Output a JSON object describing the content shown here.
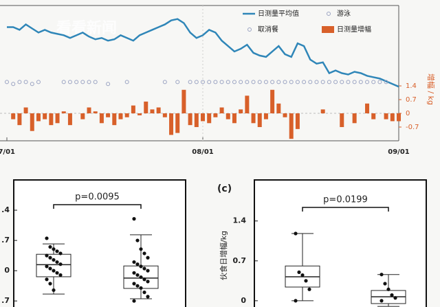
{
  "chart_data": [
    {
      "type": "combo",
      "watermark": "看看新闻",
      "y2label": "增幅 / kg",
      "xlim": [
        0,
        62
      ],
      "xticks": [
        {
          "value": 0,
          "label": "7/01"
        },
        {
          "value": 31,
          "label": "08/01"
        },
        {
          "value": 62,
          "label": "09/01"
        }
      ],
      "ylim": [
        0,
        100
      ],
      "y2lim": [
        -1.4,
        5.5
      ],
      "y2ticks": [
        1.4,
        0.7,
        0,
        -0.7
      ],
      "series": [
        {
          "name": "日测量平均值",
          "type": "line",
          "color": "#2f86b8",
          "x": [
            0,
            1,
            2,
            3,
            4,
            5,
            6,
            7,
            8,
            9,
            10,
            11,
            12,
            13,
            14,
            15,
            16,
            17,
            18,
            19,
            20,
            21,
            22,
            23,
            24,
            25,
            26,
            27,
            28,
            29,
            30,
            31,
            32,
            33,
            34,
            35,
            36,
            37,
            38,
            39,
            40,
            41,
            42,
            43,
            44,
            45,
            46,
            47,
            48,
            49,
            50,
            51,
            52,
            53,
            54,
            55,
            56,
            57,
            58,
            59,
            60,
            61,
            62
          ],
          "values": [
            84,
            84,
            82,
            86,
            83,
            80,
            82,
            80,
            79,
            78,
            76,
            78,
            80,
            77,
            75,
            76,
            74,
            75,
            78,
            76,
            74,
            78,
            80,
            82,
            84,
            86,
            89,
            90,
            87,
            80,
            76,
            78,
            82,
            80,
            74,
            70,
            66,
            68,
            71,
            65,
            63,
            62,
            66,
            70,
            64,
            62,
            72,
            70,
            60,
            57,
            58,
            50,
            52,
            50,
            49,
            51,
            50,
            48,
            47,
            46,
            44,
            42,
            40
          ]
        },
        {
          "name": "游泳",
          "type": "scatter",
          "color": "#9aa3c2",
          "axis": "y2",
          "x": [
            0,
            2,
            3,
            5,
            9,
            10,
            11,
            12,
            13,
            14,
            19,
            25,
            27,
            29,
            30,
            31,
            32,
            33,
            34,
            35,
            36,
            37,
            38,
            39,
            40,
            41,
            42,
            43,
            44,
            45,
            46,
            47,
            48,
            49,
            50,
            51,
            52,
            53,
            54,
            55,
            56,
            57,
            58,
            59,
            60
          ],
          "values": [
            1.6,
            1.6,
            1.6,
            1.6,
            1.6,
            1.6,
            1.6,
            1.6,
            1.6,
            1.6,
            1.6,
            1.6,
            1.6,
            1.6,
            1.6,
            1.6,
            1.6,
            1.6,
            1.6,
            1.6,
            1.6,
            1.6,
            1.6,
            1.6,
            1.6,
            1.6,
            1.6,
            1.6,
            1.6,
            1.6,
            1.6,
            1.6,
            1.6,
            1.6,
            1.6,
            1.6,
            1.6,
            1.6,
            1.6,
            1.6,
            1.6,
            1.6,
            1.6,
            1.6,
            1.6
          ]
        },
        {
          "name": "取消餐",
          "type": "scatter",
          "color": "#9aa3c2",
          "axis": "y2",
          "x": [
            1,
            4,
            16
          ],
          "values": [
            1.5,
            1.5,
            1.5
          ]
        },
        {
          "name": "日测量增幅",
          "type": "bar",
          "color": "#d8602a",
          "axis": "y2",
          "x": [
            1,
            2,
            3,
            4,
            5,
            6,
            7,
            8,
            9,
            10,
            12,
            13,
            14,
            15,
            16,
            17,
            18,
            19,
            20,
            21,
            22,
            23,
            24,
            25,
            26,
            27,
            28,
            29,
            30,
            31,
            32,
            33,
            34,
            35,
            36,
            37,
            38,
            39,
            40,
            41,
            42,
            43,
            44,
            45,
            46,
            50,
            53,
            55,
            57,
            58,
            60,
            61,
            62
          ],
          "values": [
            -0.3,
            -0.6,
            0.3,
            -0.9,
            -0.4,
            -0.3,
            -0.6,
            -0.5,
            0.1,
            -0.6,
            -0.3,
            0.3,
            0.1,
            -0.5,
            -0.2,
            -0.6,
            -0.3,
            -0.2,
            0.4,
            -0.1,
            0.6,
            0.2,
            0.3,
            -0.2,
            -1.1,
            -1.0,
            1.2,
            -0.6,
            -0.7,
            -0.4,
            -0.5,
            -0.2,
            0.3,
            -0.3,
            -0.5,
            0.2,
            0.9,
            -0.5,
            -0.7,
            -0.3,
            1.2,
            0.5,
            -0.2,
            -1.3,
            -0.8,
            0.2,
            -0.7,
            -0.5,
            0.5,
            -0.3,
            -0.3,
            -0.4,
            -0.4
          ]
        }
      ]
    },
    {
      "type": "box",
      "ylim": [
        -0.84,
        2.1
      ],
      "yticks": [
        {
          "value": 1.4,
          "label": ".4"
        },
        {
          "value": 0.7,
          "label": ".7"
        },
        0,
        {
          "value": -0.7,
          "label": ".7"
        }
      ],
      "annotation": "p=0.0095",
      "groups": [
        {
          "whisker_low": -0.54,
          "q1": -0.14,
          "median": 0.14,
          "q3": 0.38,
          "whisker_high": 0.62,
          "points": [
            0.75,
            0.55,
            0.5,
            0.45,
            0.4,
            0.35,
            0.3,
            0.25,
            0.2,
            0.15,
            0.1,
            0.05,
            0,
            -0.05,
            -0.1,
            -0.2,
            -0.3,
            -0.45
          ]
        },
        {
          "whisker_low": -0.65,
          "q1": -0.41,
          "median": -0.17,
          "q3": 0.11,
          "whisker_high": 0.83,
          "points": [
            1.2,
            0.7,
            0.5,
            0.4,
            0.3,
            0.2,
            0.15,
            0.1,
            0.05,
            0,
            -0.05,
            -0.1,
            -0.15,
            -0.2,
            -0.25,
            -0.3,
            -0.35,
            -0.4,
            -0.5,
            -0.6,
            -0.7
          ]
        }
      ]
    },
    {
      "type": "box",
      "panel_label": "(c)",
      "ylabel": "伙食日增幅/kg",
      "ylim": [
        -0.11,
        2.12
      ],
      "yticks": [
        1.4,
        0.7,
        0
      ],
      "annotation": "p=0.0199",
      "groups": [
        {
          "whisker_low": 0,
          "q1": 0.24,
          "median": 0.42,
          "q3": 0.61,
          "whisker_high": 1.18,
          "points": [
            1.18,
            0.5,
            0.45,
            0.35,
            0.2,
            0
          ]
        },
        {
          "whisker_low": -0.1,
          "q1": -0.05,
          "median": 0.07,
          "q3": 0.18,
          "whisker_high": 0.46,
          "points": [
            0.46,
            0.3,
            0.2,
            0.1,
            0.05,
            0
          ]
        }
      ]
    }
  ]
}
